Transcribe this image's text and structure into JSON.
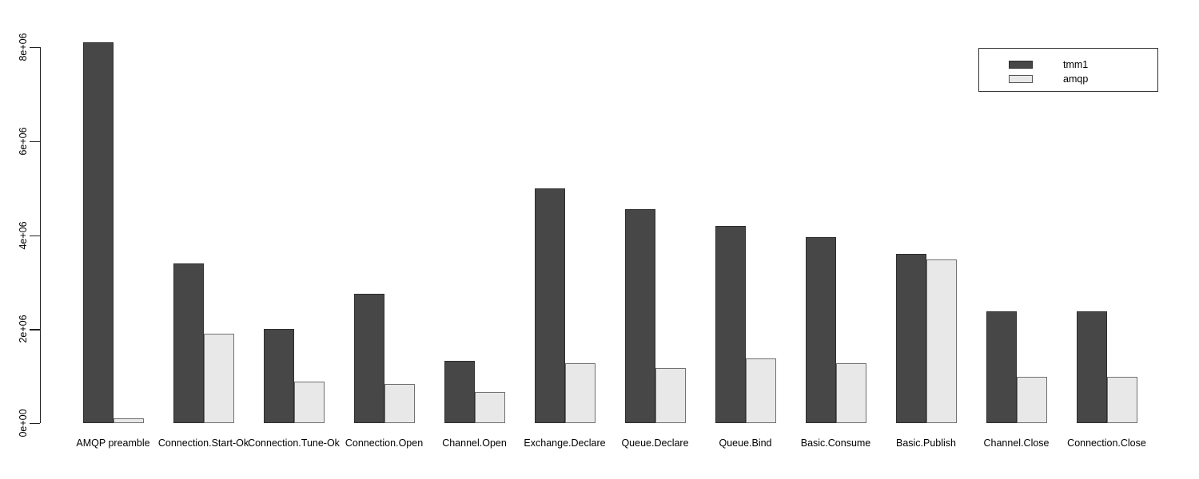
{
  "chart_data": {
    "type": "bar",
    "title": "",
    "xlabel": "",
    "ylabel": "",
    "grid": false,
    "legend_position": "top-right",
    "ylim": [
      0,
      8000000
    ],
    "yticks": [
      {
        "label": "0e+00",
        "value": 0
      },
      {
        "label": "2e+06",
        "value": 2000000
      },
      {
        "label": "4e+06",
        "value": 4000000
      },
      {
        "label": "6e+06",
        "value": 6000000
      },
      {
        "label": "8e+06",
        "value": 8000000
      }
    ],
    "categories": [
      "AMQP preamble",
      "Connection.Start-Ok",
      "Connection.Tune-Ok",
      "Connection.Open",
      "Channel.Open",
      "Exchange.Declare",
      "Queue.Declare",
      "Queue.Bind",
      "Basic.Consume",
      "Basic.Publish",
      "Channel.Close",
      "Connection.Close"
    ],
    "series": [
      {
        "name": "tmm1",
        "fill_color": "#474747",
        "border_color": "#2e2e2e",
        "values": [
          8100000,
          3400000,
          2000000,
          2750000,
          1330000,
          5000000,
          4550000,
          4200000,
          3950000,
          3600000,
          2380000,
          2380000
        ]
      },
      {
        "name": "amqp",
        "fill_color": "#e8e8e8",
        "border_color": "#707070",
        "values": [
          100000,
          1900000,
          880000,
          830000,
          670000,
          1280000,
          1180000,
          1380000,
          1280000,
          3480000,
          980000,
          980000
        ]
      }
    ]
  }
}
